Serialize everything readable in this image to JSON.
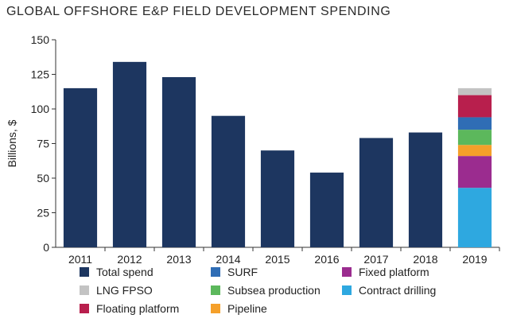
{
  "chart_data": {
    "type": "bar",
    "title": "GLOBAL OFFSHORE E&P FIELD DEVELOPMENT SPENDING",
    "ylabel": "Billions, $",
    "xlabel": "",
    "ylim": [
      0,
      150
    ],
    "yticks": [
      0,
      25,
      50,
      75,
      100,
      125,
      150
    ],
    "grid": false,
    "legend_position": "bottom",
    "categories": [
      "2011",
      "2012",
      "2013",
      "2014",
      "2015",
      "2016",
      "2017",
      "2018",
      "2019"
    ],
    "total_series": {
      "name": "Total spend",
      "color": "#1d3660",
      "values": [
        115,
        134,
        123,
        95,
        70,
        54,
        79,
        83,
        null
      ]
    },
    "stack_category": "2019",
    "stack_series": [
      {
        "name": "Contract drilling",
        "color": "#2ea8e0",
        "value": 43
      },
      {
        "name": "Fixed platform",
        "color": "#9b2c8f",
        "value": 23
      },
      {
        "name": "Pipeline",
        "color": "#f5a02a",
        "value": 8
      },
      {
        "name": "Subsea production",
        "color": "#5cb85c",
        "value": 11
      },
      {
        "name": "SURF",
        "color": "#2f6db5",
        "value": 9
      },
      {
        "name": "Floating platform",
        "color": "#b81f4d",
        "value": 16
      },
      {
        "name": "LNG FPSO",
        "color": "#c3c3c3",
        "value": 5
      }
    ]
  },
  "legend": [
    {
      "label": "Total spend",
      "color": "#1d3660"
    },
    {
      "label": "SURF",
      "color": "#2f6db5"
    },
    {
      "label": "Fixed platform",
      "color": "#9b2c8f"
    },
    {
      "label": "LNG FPSO",
      "color": "#c3c3c3"
    },
    {
      "label": "Subsea production",
      "color": "#5cb85c"
    },
    {
      "label": "Contract drilling",
      "color": "#2ea8e0"
    },
    {
      "label": "Floating platform",
      "color": "#b81f4d"
    },
    {
      "label": "Pipeline",
      "color": "#f5a02a"
    }
  ]
}
